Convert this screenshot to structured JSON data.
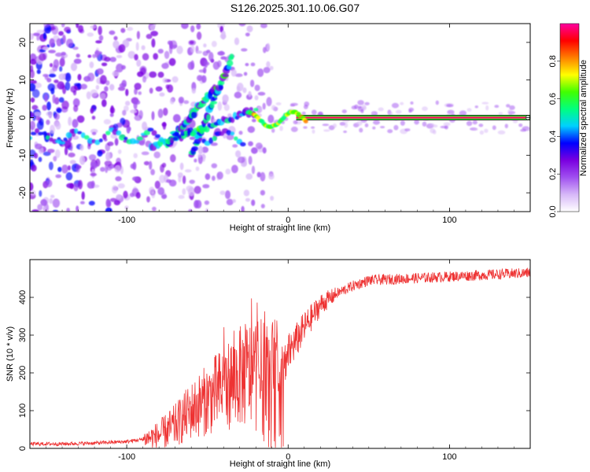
{
  "title": "S126.2025.301.10.06.G07",
  "chart_data": [
    {
      "type": "heatmap",
      "name": "radio-holographic spectrum",
      "xlabel": "Height of straight line (km)",
      "ylabel": "Frequency (Hz)",
      "xlim": [
        -160,
        150
      ],
      "ylim": [
        -25,
        25
      ],
      "xticks": [
        -100,
        0,
        100
      ],
      "xtick_labels": [
        "-100",
        "0",
        "100"
      ],
      "yticks": [
        -20,
        -10,
        0,
        10,
        20
      ],
      "ytick_labels": [
        "-20",
        "-10",
        "0",
        "10",
        "20"
      ],
      "colorbar": {
        "label": "Normalized spectral amplitude",
        "range": [
          0,
          1
        ],
        "ticks": [
          0.0,
          0.2,
          0.4,
          0.6,
          0.8
        ],
        "tick_labels": [
          "0.0",
          "0.2",
          "0.4",
          "0.6",
          "0.8"
        ],
        "colors": [
          "#ffffff",
          "#d7b8f8",
          "#a050f0",
          "#7a00e0",
          "#0000ff",
          "#00d0ff",
          "#00ff80",
          "#40ff00",
          "#ffff00",
          "#ff8000",
          "#ff0000",
          "#ff00a0"
        ]
      },
      "main_ridge": {
        "x_range": [
          -25,
          150
        ],
        "freq_hz": 0
      },
      "secondary_ridges": [
        {
          "x_range": [
            -85,
            -20
          ],
          "freq_start_hz": -8,
          "freq_end_hz": 2
        },
        {
          "x_range": [
            -75,
            -45
          ],
          "freq_start_hz": -7,
          "freq_end_hz": 8
        },
        {
          "x_range": [
            -60,
            -35
          ],
          "freq_start_hz": -10,
          "freq_end_hz": 16
        }
      ]
    },
    {
      "type": "line",
      "name": "snr profile",
      "xlabel": "Height of straight line (km)",
      "ylabel": "SNR (10 * v/v)",
      "xlim": [
        -160,
        150
      ],
      "ylim": [
        0,
        500
      ],
      "xticks": [
        -100,
        0,
        100
      ],
      "xtick_labels": [
        "-100",
        "0",
        "100"
      ],
      "yticks": [
        0,
        100,
        200,
        300,
        400
      ],
      "ytick_labels": [
        "0",
        "100",
        "200",
        "300",
        "400"
      ],
      "color": "#ee3333",
      "x": [
        -160,
        -140,
        -120,
        -100,
        -90,
        -80,
        -70,
        -60,
        -50,
        -40,
        -30,
        -20,
        -10,
        -5,
        0,
        10,
        20,
        30,
        40,
        50,
        75,
        100,
        125,
        150
      ],
      "y": [
        12,
        12,
        14,
        18,
        24,
        35,
        60,
        100,
        130,
        160,
        190,
        200,
        160,
        200,
        250,
        320,
        380,
        410,
        430,
        445,
        450,
        455,
        460,
        465
      ]
    }
  ]
}
